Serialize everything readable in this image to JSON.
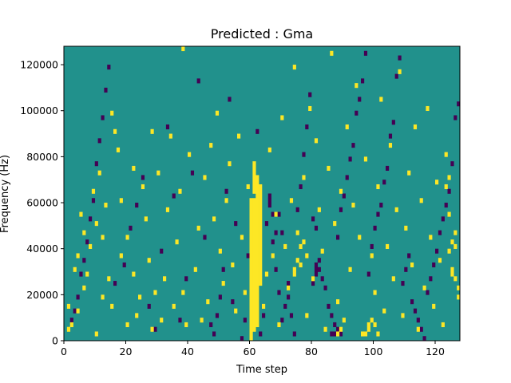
{
  "chart_data": {
    "type": "heatmap",
    "title": "Predicted : Gma",
    "xlabel": "Time step",
    "ylabel": "Frequency (Hz)",
    "xlim": [
      0,
      128
    ],
    "ylim": [
      0,
      128000
    ],
    "xticks": [
      "0",
      "20",
      "40",
      "60",
      "80",
      "100",
      "120"
    ],
    "yticks": [
      "0",
      "20000",
      "40000",
      "60000",
      "80000",
      "100000",
      "120000"
    ],
    "grid": false,
    "legend": "none",
    "colormap": "viridis",
    "cell_size": {
      "time_steps": 1,
      "hz": 2000
    },
    "colors": {
      "background": "#21918c",
      "high": "#fde725",
      "low": "#440154"
    },
    "yellow_bands": [
      {
        "t": 60,
        "f_min": 0,
        "f_max": 62000
      },
      {
        "t": 61,
        "f_min": 4000,
        "f_max": 62000
      },
      {
        "t": 62,
        "f_min": 6000,
        "f_max": 72000
      },
      {
        "t": 63,
        "f_min": 24000,
        "f_max": 68000
      },
      {
        "t": 61,
        "f_min": 64000,
        "f_max": 78000
      }
    ],
    "yellow_cells": [
      [
        1,
        4000
      ],
      [
        1,
        14000
      ],
      [
        2,
        6000
      ],
      [
        3,
        30000
      ],
      [
        4,
        12000
      ],
      [
        4,
        36000
      ],
      [
        5,
        54000
      ],
      [
        6,
        22000
      ],
      [
        6,
        46000
      ],
      [
        7,
        28000
      ],
      [
        8,
        40000
      ],
      [
        9,
        64000
      ],
      [
        10,
        2000
      ],
      [
        10,
        50000
      ],
      [
        11,
        72000
      ],
      [
        12,
        18000
      ],
      [
        12,
        44000
      ],
      [
        13,
        58000
      ],
      [
        14,
        26000
      ],
      [
        15,
        14000
      ],
      [
        15,
        98000
      ],
      [
        16,
        90000
      ],
      [
        17,
        82000
      ],
      [
        18,
        36000
      ],
      [
        18,
        60000
      ],
      [
        20,
        6000
      ],
      [
        20,
        44000
      ],
      [
        22,
        28000
      ],
      [
        22,
        74000
      ],
      [
        23,
        10000
      ],
      [
        24,
        18000
      ],
      [
        25,
        66000
      ],
      [
        26,
        52000
      ],
      [
        27,
        34000
      ],
      [
        28,
        4000
      ],
      [
        28,
        90000
      ],
      [
        29,
        20000
      ],
      [
        30,
        72000
      ],
      [
        31,
        8000
      ],
      [
        32,
        26000
      ],
      [
        33,
        56000
      ],
      [
        34,
        88000
      ],
      [
        35,
        14000
      ],
      [
        36,
        42000
      ],
      [
        37,
        64000
      ],
      [
        38,
        20000
      ],
      [
        38,
        126000
      ],
      [
        39,
        6000
      ],
      [
        40,
        80000
      ],
      [
        42,
        30000
      ],
      [
        43,
        48000
      ],
      [
        44,
        8000
      ],
      [
        45,
        70000
      ],
      [
        46,
        16000
      ],
      [
        47,
        84000
      ],
      [
        48,
        52000
      ],
      [
        49,
        98000
      ],
      [
        50,
        38000
      ],
      [
        51,
        24000
      ],
      [
        52,
        60000
      ],
      [
        53,
        76000
      ],
      [
        54,
        32000
      ],
      [
        55,
        12000
      ],
      [
        56,
        88000
      ],
      [
        57,
        44000
      ],
      [
        58,
        20000
      ],
      [
        59,
        66000
      ],
      [
        64,
        14000
      ],
      [
        65,
        28000
      ],
      [
        66,
        82000
      ],
      [
        67,
        36000
      ],
      [
        68,
        54000
      ],
      [
        69,
        6000
      ],
      [
        70,
        96000
      ],
      [
        71,
        40000
      ],
      [
        72,
        22000
      ],
      [
        73,
        60000
      ],
      [
        74,
        118000
      ],
      [
        75,
        46000
      ],
      [
        76,
        32000
      ],
      [
        77,
        70000
      ],
      [
        78,
        10000
      ],
      [
        79,
        100000
      ],
      [
        80,
        26000
      ],
      [
        81,
        86000
      ],
      [
        82,
        56000
      ],
      [
        83,
        38000
      ],
      [
        84,
        4000
      ],
      [
        85,
        74000
      ],
      [
        86,
        124000
      ],
      [
        87,
        50000
      ],
      [
        88,
        16000
      ],
      [
        89,
        64000
      ],
      [
        90,
        8000
      ],
      [
        91,
        92000
      ],
      [
        92,
        30000
      ],
      [
        93,
        58000
      ],
      [
        94,
        110000
      ],
      [
        95,
        44000
      ],
      [
        96,
        2000
      ],
      [
        97,
        78000
      ],
      [
        98,
        6000
      ],
      [
        99,
        36000
      ],
      [
        100,
        20000
      ],
      [
        101,
        66000
      ],
      [
        102,
        104000
      ],
      [
        103,
        12000
      ],
      [
        104,
        40000
      ],
      [
        105,
        84000
      ],
      [
        106,
        26000
      ],
      [
        107,
        56000
      ],
      [
        108,
        116000
      ],
      [
        109,
        10000
      ],
      [
        110,
        48000
      ],
      [
        111,
        72000
      ],
      [
        112,
        32000
      ],
      [
        113,
        92000
      ],
      [
        114,
        4000
      ],
      [
        115,
        60000
      ],
      [
        116,
        22000
      ],
      [
        117,
        100000
      ],
      [
        118,
        44000
      ],
      [
        119,
        14000
      ],
      [
        120,
        68000
      ],
      [
        121,
        34000
      ],
      [
        122,
        6000
      ],
      [
        123,
        80000
      ],
      [
        124,
        54000
      ],
      [
        125,
        28000
      ],
      [
        126,
        40000
      ],
      [
        127,
        18000
      ],
      [
        96,
        2000
      ],
      [
        97,
        2000
      ],
      [
        98,
        4000
      ],
      [
        99,
        8000
      ],
      [
        100,
        6000
      ],
      [
        101,
        2000
      ],
      [
        88,
        2000
      ],
      [
        89,
        4000
      ],
      [
        74,
        28000
      ],
      [
        74,
        30000
      ],
      [
        75,
        34000
      ],
      [
        76,
        40000
      ],
      [
        77,
        42000
      ],
      [
        78,
        36000
      ],
      [
        123,
        66000
      ],
      [
        124,
        70000
      ],
      [
        125,
        30000
      ],
      [
        126,
        26000
      ],
      [
        127,
        22000
      ],
      [
        124,
        38000
      ],
      [
        125,
        42000
      ],
      [
        126,
        46000
      ]
    ],
    "purple_cells": [
      [
        2,
        8000
      ],
      [
        3,
        12000
      ],
      [
        4,
        18000
      ],
      [
        5,
        28000
      ],
      [
        6,
        34000
      ],
      [
        7,
        42000
      ],
      [
        8,
        52000
      ],
      [
        9,
        60000
      ],
      [
        10,
        76000
      ],
      [
        11,
        86000
      ],
      [
        12,
        96000
      ],
      [
        13,
        108000
      ],
      [
        14,
        118000
      ],
      [
        16,
        24000
      ],
      [
        19,
        32000
      ],
      [
        21,
        48000
      ],
      [
        23,
        58000
      ],
      [
        25,
        70000
      ],
      [
        27,
        14000
      ],
      [
        29,
        4000
      ],
      [
        31,
        38000
      ],
      [
        33,
        92000
      ],
      [
        35,
        62000
      ],
      [
        37,
        8000
      ],
      [
        39,
        26000
      ],
      [
        41,
        72000
      ],
      [
        43,
        112000
      ],
      [
        45,
        44000
      ],
      [
        47,
        6000
      ],
      [
        48,
        2000
      ],
      [
        49,
        10000
      ],
      [
        50,
        18000
      ],
      [
        51,
        30000
      ],
      [
        52,
        64000
      ],
      [
        53,
        104000
      ],
      [
        54,
        16000
      ],
      [
        55,
        50000
      ],
      [
        57,
        0
      ],
      [
        58,
        8000
      ],
      [
        59,
        36000
      ],
      [
        63,
        2000
      ],
      [
        64,
        10000
      ],
      [
        65,
        50000
      ],
      [
        66,
        60000
      ],
      [
        67,
        42000
      ],
      [
        68,
        30000
      ],
      [
        69,
        20000
      ],
      [
        70,
        8000
      ],
      [
        71,
        14000
      ],
      [
        72,
        18000
      ],
      [
        72,
        24000
      ],
      [
        73,
        10000
      ],
      [
        74,
        2000
      ],
      [
        75,
        56000
      ],
      [
        76,
        66000
      ],
      [
        77,
        80000
      ],
      [
        78,
        92000
      ],
      [
        79,
        106000
      ],
      [
        80,
        52000
      ],
      [
        81,
        48000
      ],
      [
        82,
        34000
      ],
      [
        83,
        26000
      ],
      [
        84,
        22000
      ],
      [
        85,
        14000
      ],
      [
        86,
        10000
      ],
      [
        87,
        6000
      ],
      [
        88,
        44000
      ],
      [
        89,
        56000
      ],
      [
        90,
        62000
      ],
      [
        91,
        70000
      ],
      [
        92,
        78000
      ],
      [
        93,
        84000
      ],
      [
        94,
        98000
      ],
      [
        95,
        104000
      ],
      [
        96,
        112000
      ],
      [
        97,
        124000
      ],
      [
        98,
        28000
      ],
      [
        99,
        40000
      ],
      [
        100,
        48000
      ],
      [
        101,
        54000
      ],
      [
        102,
        58000
      ],
      [
        103,
        68000
      ],
      [
        104,
        74000
      ],
      [
        105,
        88000
      ],
      [
        106,
        94000
      ],
      [
        107,
        114000
      ],
      [
        108,
        122000
      ],
      [
        109,
        24000
      ],
      [
        110,
        30000
      ],
      [
        111,
        36000
      ],
      [
        112,
        16000
      ],
      [
        113,
        12000
      ],
      [
        114,
        8000
      ],
      [
        115,
        4000
      ],
      [
        116,
        0
      ],
      [
        117,
        20000
      ],
      [
        118,
        26000
      ],
      [
        119,
        32000
      ],
      [
        120,
        38000
      ],
      [
        121,
        46000
      ],
      [
        122,
        52000
      ],
      [
        123,
        58000
      ],
      [
        124,
        64000
      ],
      [
        125,
        76000
      ],
      [
        126,
        96000
      ],
      [
        127,
        102000
      ],
      [
        81,
        28000
      ],
      [
        81,
        30000
      ],
      [
        81,
        32000
      ],
      [
        82,
        30000
      ],
      [
        80,
        24000
      ],
      [
        80,
        26000
      ],
      [
        62,
        90000
      ],
      [
        66,
        58000
      ],
      [
        66,
        62000
      ],
      [
        67,
        54000
      ],
      [
        68,
        46000
      ],
      [
        69,
        54000
      ],
      [
        70,
        46000
      ],
      [
        86,
        2000
      ],
      [
        87,
        2000
      ],
      [
        88,
        4000
      ],
      [
        89,
        2000
      ]
    ]
  }
}
